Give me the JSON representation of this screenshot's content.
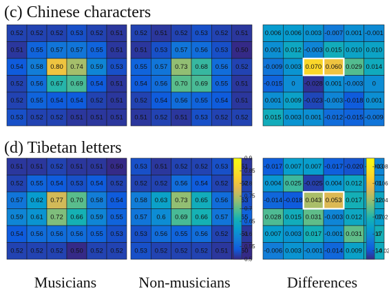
{
  "sections": [
    {
      "title": "(c) Chinese characters"
    },
    {
      "title": "(d) Tibetan letters"
    }
  ],
  "column_labels": [
    "Musicians",
    "Non-musicians",
    "Differences"
  ],
  "chart_data": [
    {
      "type": "heatmap",
      "section": "(c) Chinese characters",
      "group": "Musicians",
      "rows": [
        [
          "0.52",
          "0.52",
          "0.52",
          "0.53",
          "0.52",
          "0.51"
        ],
        [
          "0.51",
          "0.55",
          "0.57",
          "0.57",
          "0.55",
          "0.51"
        ],
        [
          "0.54",
          "0.58",
          "0.80",
          "0.74",
          "0.59",
          "0.53"
        ],
        [
          "0.52",
          "0.56",
          "0.67",
          "0.69",
          "0.54",
          "0.51"
        ],
        [
          "0.52",
          "0.55",
          "0.54",
          "0.54",
          "0.52",
          "0.51"
        ],
        [
          "0.53",
          "0.52",
          "0.52",
          "0.51",
          "0.51",
          "0.51"
        ]
      ]
    },
    {
      "type": "heatmap",
      "section": "(c) Chinese characters",
      "group": "Non-musicians",
      "rows": [
        [
          "0.52",
          "0.51",
          "0.52",
          "0.53",
          "0.52",
          "0.51"
        ],
        [
          "0.51",
          "0.53",
          "0.57",
          "0.56",
          "0.53",
          "0.50"
        ],
        [
          "0.55",
          "0.57",
          "0.73",
          "0.68",
          "0.56",
          "0.52"
        ],
        [
          "0.54",
          "0.56",
          "0.70",
          "0.69",
          "0.55",
          "0.51"
        ],
        [
          "0.52",
          "0.54",
          "0.56",
          "0.55",
          "0.54",
          "0.51"
        ],
        [
          "0.51",
          "0.52",
          "0.51",
          "0.53",
          "0.52",
          "0.52"
        ]
      ]
    },
    {
      "type": "heatmap",
      "section": "(c) Chinese characters",
      "group": "Differences",
      "highlight": [
        [
          2,
          2
        ],
        [
          2,
          3
        ]
      ],
      "rows": [
        [
          "0.006",
          "0.006",
          "0.003",
          "-0.007",
          "0.001",
          "-0.001"
        ],
        [
          "0.001",
          "0.012",
          "-0.003",
          "0.015",
          "0.010",
          "0.010"
        ],
        [
          "-0.009",
          "0.003",
          "0.070",
          "0.060",
          "0.029",
          "0.014"
        ],
        [
          "-0.015",
          "0",
          "-0.028",
          "0.001",
          "-0.003",
          "0"
        ],
        [
          "0.001",
          "0.009",
          "-0.023",
          "-0.003",
          "-0.018",
          "0.001"
        ],
        [
          "0.015",
          "0.003",
          "0.001",
          "-0.012",
          "-0.015",
          "-0.009"
        ]
      ]
    },
    {
      "type": "heatmap",
      "section": "(d) Tibetan letters",
      "group": "Musicians",
      "rows": [
        [
          "0.51",
          "0.51",
          "0.52",
          "0.51",
          "0.51",
          "0.50"
        ],
        [
          "0.52",
          "0.55",
          "0.54",
          "0.53",
          "0.54",
          "0.52"
        ],
        [
          "0.57",
          "0.62",
          "0.77",
          "0.70",
          "0.58",
          "0.54"
        ],
        [
          "0.59",
          "0.61",
          "0.72",
          "0.66",
          "0.59",
          "0.55"
        ],
        [
          "0.54",
          "0.56",
          "0.56",
          "0.56",
          "0.55",
          "0.53"
        ],
        [
          "0.52",
          "0.52",
          "0.52",
          "0.50",
          "0.52",
          "0.52"
        ]
      ]
    },
    {
      "type": "heatmap",
      "section": "(d) Tibetan letters",
      "group": "Non-musicians",
      "rows": [
        [
          "0.53",
          "0.51",
          "0.52",
          "0.52",
          "0.53",
          "0.51"
        ],
        [
          "0.52",
          "0.52",
          "0.56",
          "0.54",
          "0.52",
          "0.52"
        ],
        [
          "0.58",
          "0.63",
          "0.73",
          "0.65",
          "0.56",
          "0.53"
        ],
        [
          "0.57",
          "0.6",
          "0.69",
          "0.66",
          "0.57",
          "0.55"
        ],
        [
          "0.53",
          "0.56",
          "0.55",
          "0.56",
          "0.52",
          "0.51"
        ],
        [
          "0.53",
          "0.52",
          "0.52",
          "0.52",
          "0.51",
          "0.50"
        ]
      ]
    },
    {
      "type": "heatmap",
      "section": "(d) Tibetan letters",
      "group": "Differences",
      "highlight": [
        [
          2,
          2
        ],
        [
          2,
          3
        ]
      ],
      "rows": [
        [
          "-0.017",
          "0.007",
          "0.007",
          "-0.017",
          "-0.020",
          "-0.003"
        ],
        [
          "0.004",
          "0.025",
          "-0.025",
          "0.004",
          "0.012",
          "0.001"
        ],
        [
          "-0.014",
          "-0.018",
          "0.043",
          "0.053",
          "0.017",
          "0.012"
        ],
        [
          "0.028",
          "0.015",
          "0.031",
          "-0.003",
          "0.012",
          "0.007"
        ],
        [
          "0.007",
          "0.003",
          "0.017",
          "-0.001",
          "0.031",
          "0.017"
        ],
        [
          "-0.006",
          "0.003",
          "-0.001",
          "-0.014",
          "0.009",
          "0.014"
        ]
      ]
    }
  ],
  "colorbars": [
    {
      "range": [
        0.5,
        0.9
      ],
      "ticks": [
        "0.9",
        "0.85",
        "0.8",
        "0.75",
        "0.7",
        "0.65",
        "0.6",
        "0.55",
        "0.5"
      ]
    },
    {
      "range": [
        -0.03,
        0.09
      ],
      "ticks": [
        "0.08",
        "0.06",
        "0.04",
        "0.02",
        "0",
        "-0.02"
      ]
    }
  ],
  "colormap": "parula"
}
